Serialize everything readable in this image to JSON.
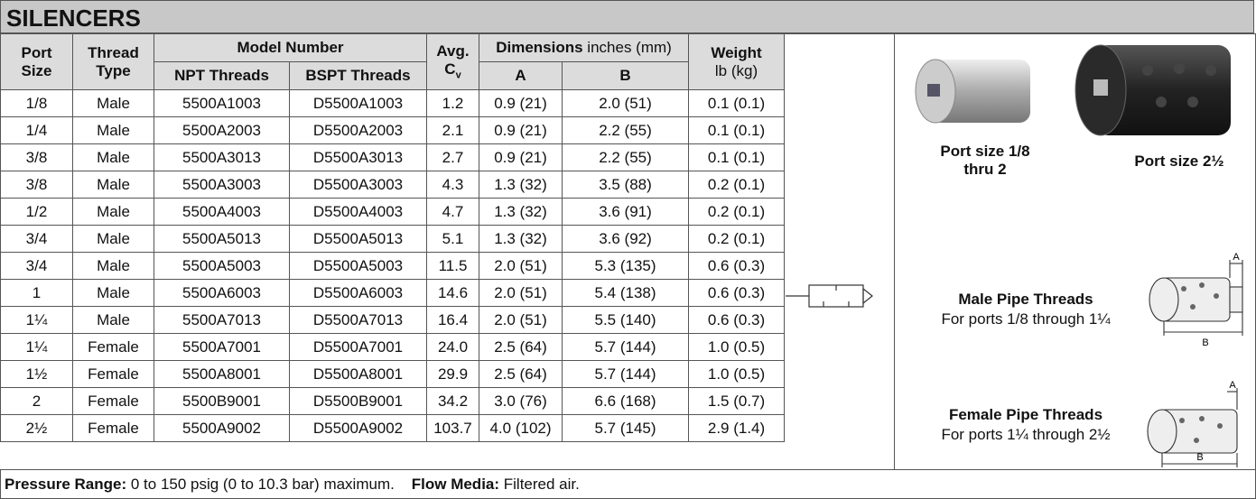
{
  "title": "SILENCERS",
  "table": {
    "headers": {
      "port": "Port Size",
      "thread": "Thread Type",
      "model": "Model Number",
      "npt": "NPT Threads",
      "bspt": "BSPT Threads",
      "avg": "Avg.",
      "cv": "C",
      "cv_sub": "v",
      "dimensions": "Dimensions",
      "dimensions_unit": "inches (mm)",
      "a": "A",
      "b": "B",
      "weight": "Weight",
      "weight_unit": "lb (kg)"
    },
    "rows": [
      [
        "1/8",
        "Male",
        "5500A1003",
        "D5500A1003",
        "1.2",
        "0.9 (21)",
        "2.0 (51)",
        "0.1 (0.1)"
      ],
      [
        "1/4",
        "Male",
        "5500A2003",
        "D5500A2003",
        "2.1",
        "0.9 (21)",
        "2.2 (55)",
        "0.1 (0.1)"
      ],
      [
        "3/8",
        "Male",
        "5500A3013",
        "D5500A3013",
        "2.7",
        "0.9 (21)",
        "2.2 (55)",
        "0.1 (0.1)"
      ],
      [
        "3/8",
        "Male",
        "5500A3003",
        "D5500A3003",
        "4.3",
        "1.3 (32)",
        "3.5 (88)",
        "0.2 (0.1)"
      ],
      [
        "1/2",
        "Male",
        "5500A4003",
        "D5500A4003",
        "4.7",
        "1.3 (32)",
        "3.6 (91)",
        "0.2 (0.1)"
      ],
      [
        "3/4",
        "Male",
        "5500A5013",
        "D5500A5013",
        "5.1",
        "1.3 (32)",
        "3.6 (92)",
        "0.2 (0.1)"
      ],
      [
        "3/4",
        "Male",
        "5500A5003",
        "D5500A5003",
        "11.5",
        "2.0 (51)",
        "5.3 (135)",
        "0.6 (0.3)"
      ],
      [
        "1",
        "Male",
        "5500A6003",
        "D5500A6003",
        "14.6",
        "2.0 (51)",
        "5.4 (138)",
        "0.6 (0.3)"
      ],
      [
        "1¼",
        "Male",
        "5500A7013",
        "D5500A7013",
        "16.4",
        "2.0 (51)",
        "5.5 (140)",
        "0.6 (0.3)"
      ],
      [
        "1¼",
        "Female",
        "5500A7001",
        "D5500A7001",
        "24.0",
        "2.5 (64)",
        "5.7 (144)",
        "1.0 (0.5)"
      ],
      [
        "1½",
        "Female",
        "5500A8001",
        "D5500A8001",
        "29.9",
        "2.5 (64)",
        "5.7 (144)",
        "1.0 (0.5)"
      ],
      [
        "2",
        "Female",
        "5500B9001",
        "D5500B9001",
        "34.2",
        "3.0 (76)",
        "6.6 (168)",
        "1.5 (0.7)"
      ],
      [
        "2½",
        "Female",
        "5500A9002",
        "D5500A9002",
        "103.7",
        "4.0 (102)",
        "5.7 (145)",
        "2.9 (1.4)"
      ]
    ]
  },
  "panel": {
    "photo_small": "Port size 1/8 thru 2",
    "photo_large": "Port size 2½",
    "male_title": "Male Pipe Threads",
    "male_text": "For ports 1/8 through 1¼",
    "female_title": "Female Pipe Threads",
    "female_text": "For ports 1¼ through 2½",
    "dim_a": "A",
    "dim_b": "B"
  },
  "footer": {
    "pressure_label": "Pressure Range:",
    "pressure_text": "0 to 150 psig (0 to 10.3 bar) maximum.",
    "media_label": "Flow Media:",
    "media_text": "Filtered air."
  }
}
